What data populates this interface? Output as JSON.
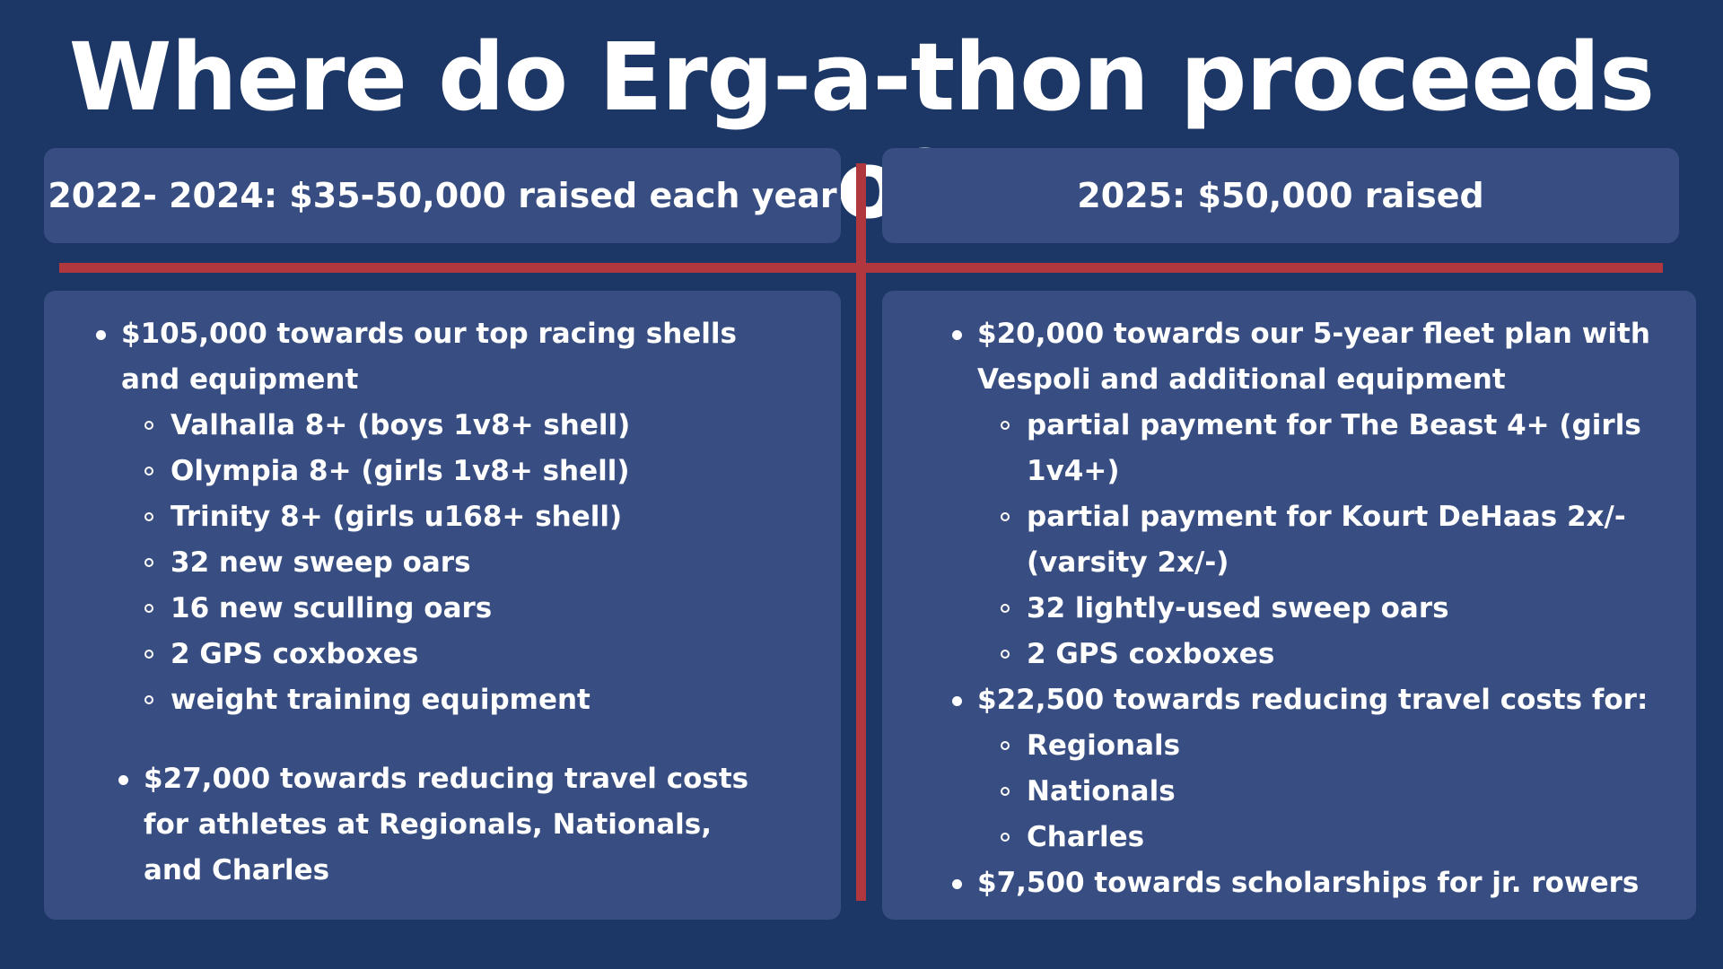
{
  "title": "Where do Erg-a-thon proceeds go?",
  "colors": {
    "background": "#1c3766",
    "panel": "#384e82",
    "divider": "#b0373e",
    "text": "#ffffff"
  },
  "left": {
    "header": "2022- 2024: $35-50,000 raised each year",
    "items": [
      {
        "text": "$105,000 towards our top racing shells and equipment",
        "subitems": [
          "Valhalla 8+ (boys 1v8+ shell)",
          "Olympia 8+ (girls 1v8+ shell)",
          "Trinity 8+ (girls u168+ shell)",
          "32 new sweep oars",
          "16 new sculling oars",
          "2 GPS coxboxes",
          "weight training equipment"
        ]
      }
    ],
    "items2": [
      "$27,000 towards reducing travel costs for athletes at Regionals, Nationals, and Charles"
    ]
  },
  "right": {
    "header": "2025: $50,000 raised",
    "items": [
      {
        "text": "$20,000 towards our 5-year fleet plan with Vespoli and additional equipment",
        "subitems": [
          "partial payment for The Beast 4+ (girls 1v4+)",
          "partial payment for Kourt DeHaas 2x/- (varsity 2x/-)",
          "32 lightly-used sweep oars",
          "2 GPS coxboxes"
        ]
      },
      {
        "text": "$22,500 towards reducing travel costs for:",
        "subitems": [
          "Regionals",
          "Nationals",
          "Charles"
        ]
      },
      {
        "text": "$7,500 towards scholarships for jr. rowers",
        "subitems": []
      }
    ]
  }
}
